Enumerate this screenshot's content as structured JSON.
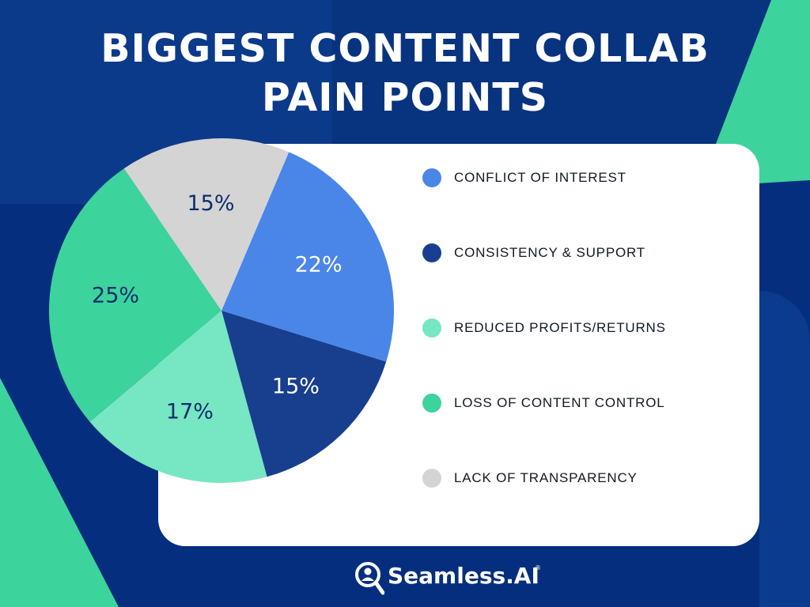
{
  "title_lines": [
    "BIGGEST CONTENT COLLAB",
    "PAIN POINTS"
  ],
  "colors": {
    "background": "#052f7e",
    "accent_green": "#3dd39c",
    "card": "#ffffff"
  },
  "chart_data": {
    "type": "pie",
    "title": "BIGGEST CONTENT COLLAB PAIN POINTS",
    "legend_position": "right",
    "slices": [
      {
        "label": "CONFLICT OF INTEREST",
        "value": 22,
        "display": "22%",
        "color": "#4a86e8",
        "label_color": "#ffffff"
      },
      {
        "label": "CONSISTENCY & SUPPORT",
        "value": 15,
        "display": "15%",
        "color": "#183f8d",
        "label_color": "#ffffff"
      },
      {
        "label": "REDUCED PROFITS/RETURNS",
        "value": 17,
        "display": "17%",
        "color": "#77e6c3",
        "label_color": "#0f2d6b"
      },
      {
        "label": "LOSS OF CONTENT CONTROL",
        "value": 25,
        "display": "25%",
        "color": "#3dd39c",
        "label_color": "#0f2d6b"
      },
      {
        "label": "LACK OF TRANSPARENCY",
        "value": 15,
        "display": "15%",
        "color": "#d4d4d4",
        "label_color": "#0f2d6b"
      }
    ]
  },
  "brand": {
    "name": "Seamless.AI",
    "registered_mark": "®",
    "icon": "magnifier-person-icon"
  }
}
